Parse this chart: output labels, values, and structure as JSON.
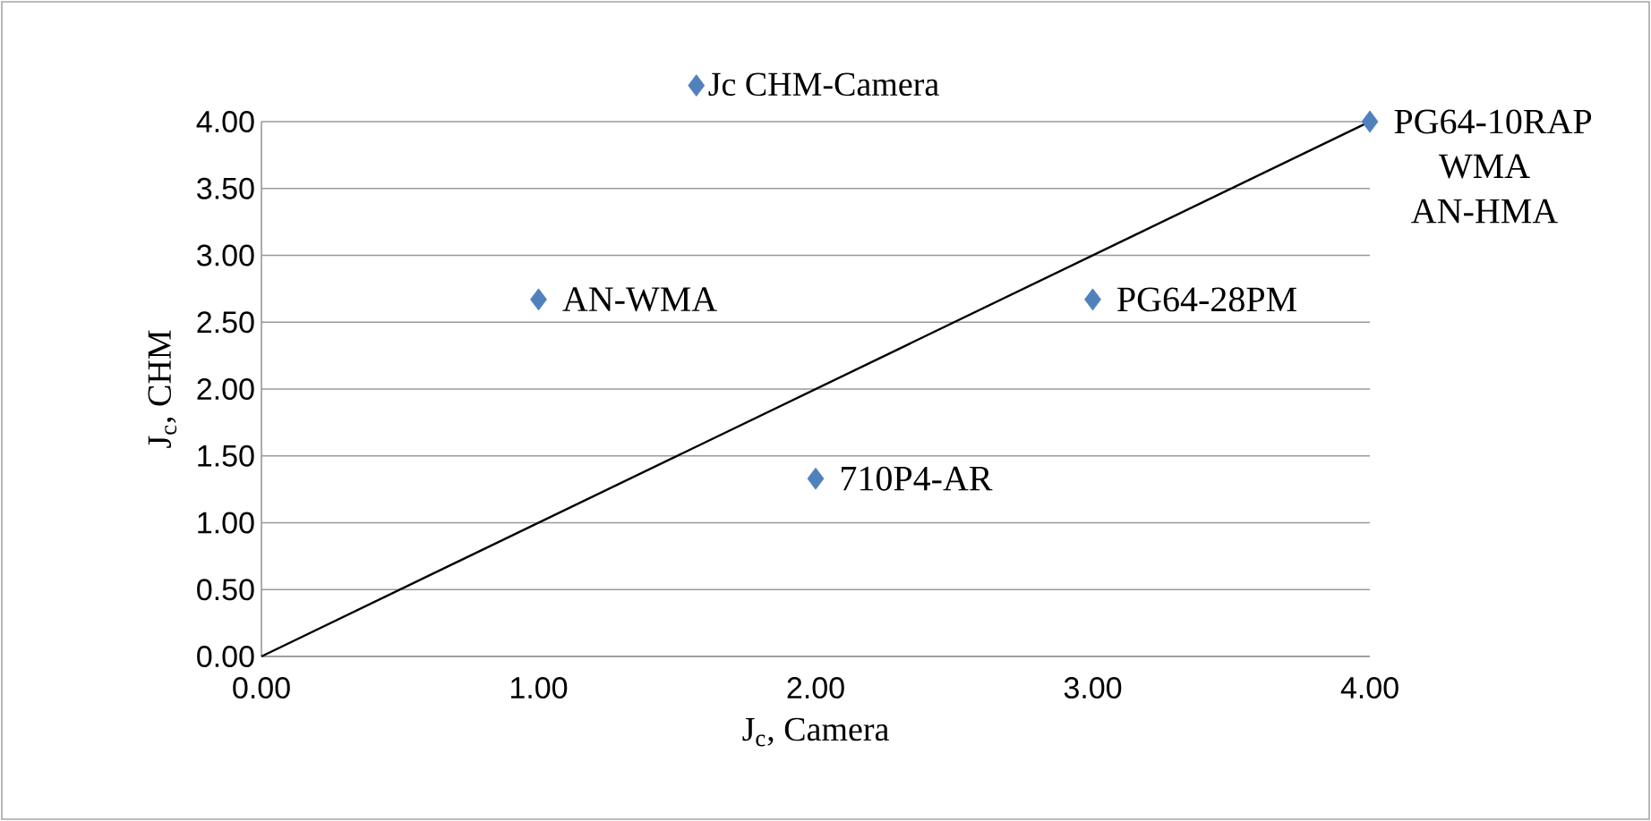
{
  "chart_data": {
    "type": "scatter",
    "xlabel": "J$_{c}$, Camera",
    "ylabel": "J$_{c}$, CHM",
    "xlim": [
      0,
      4
    ],
    "ylim": [
      0,
      4
    ],
    "xticks": [
      {
        "value": 0,
        "label": "0.00"
      },
      {
        "value": 1,
        "label": "1.00"
      },
      {
        "value": 2,
        "label": "2.00"
      },
      {
        "value": 3,
        "label": "3.00"
      },
      {
        "value": 4,
        "label": "4.00"
      }
    ],
    "yticks": [
      {
        "value": 0,
        "label": "0.00"
      },
      {
        "value": 0.5,
        "label": "0.50"
      },
      {
        "value": 1,
        "label": "1.00"
      },
      {
        "value": 1.5,
        "label": "1.50"
      },
      {
        "value": 2,
        "label": "2.00"
      },
      {
        "value": 2.5,
        "label": "2.50"
      },
      {
        "value": 3,
        "label": "3.00"
      },
      {
        "value": 3.5,
        "label": "3.50"
      },
      {
        "value": 4,
        "label": "4.00"
      }
    ],
    "grid": "y",
    "legend": "top",
    "series": [
      {
        "name": "Jc CHM-Camera",
        "marker": "diamond",
        "color": "#4f81bd",
        "x": [
          1,
          2,
          3,
          4
        ],
        "values": [
          2.67,
          1.33,
          2.67,
          4
        ]
      },
      {
        "type": "line",
        "marker": "none",
        "color": "#000000",
        "x": [
          0,
          4
        ],
        "values": [
          0,
          4
        ]
      }
    ],
    "annotations": [
      {
        "text": "AN-WMA",
        "x": 1,
        "y": 2.67
      },
      {
        "text": "710P4-AR",
        "x": 2,
        "y": 1.33
      },
      {
        "text": "PG64-28PM",
        "x": 3,
        "y": 2.67
      },
      {
        "text": "PG64-10RAP",
        "x": 4,
        "y": 4
      },
      {
        "text": "WMA",
        "x": 4,
        "y": 4
      },
      {
        "text": "AN-HMA",
        "x": 4,
        "y": 4
      }
    ]
  }
}
